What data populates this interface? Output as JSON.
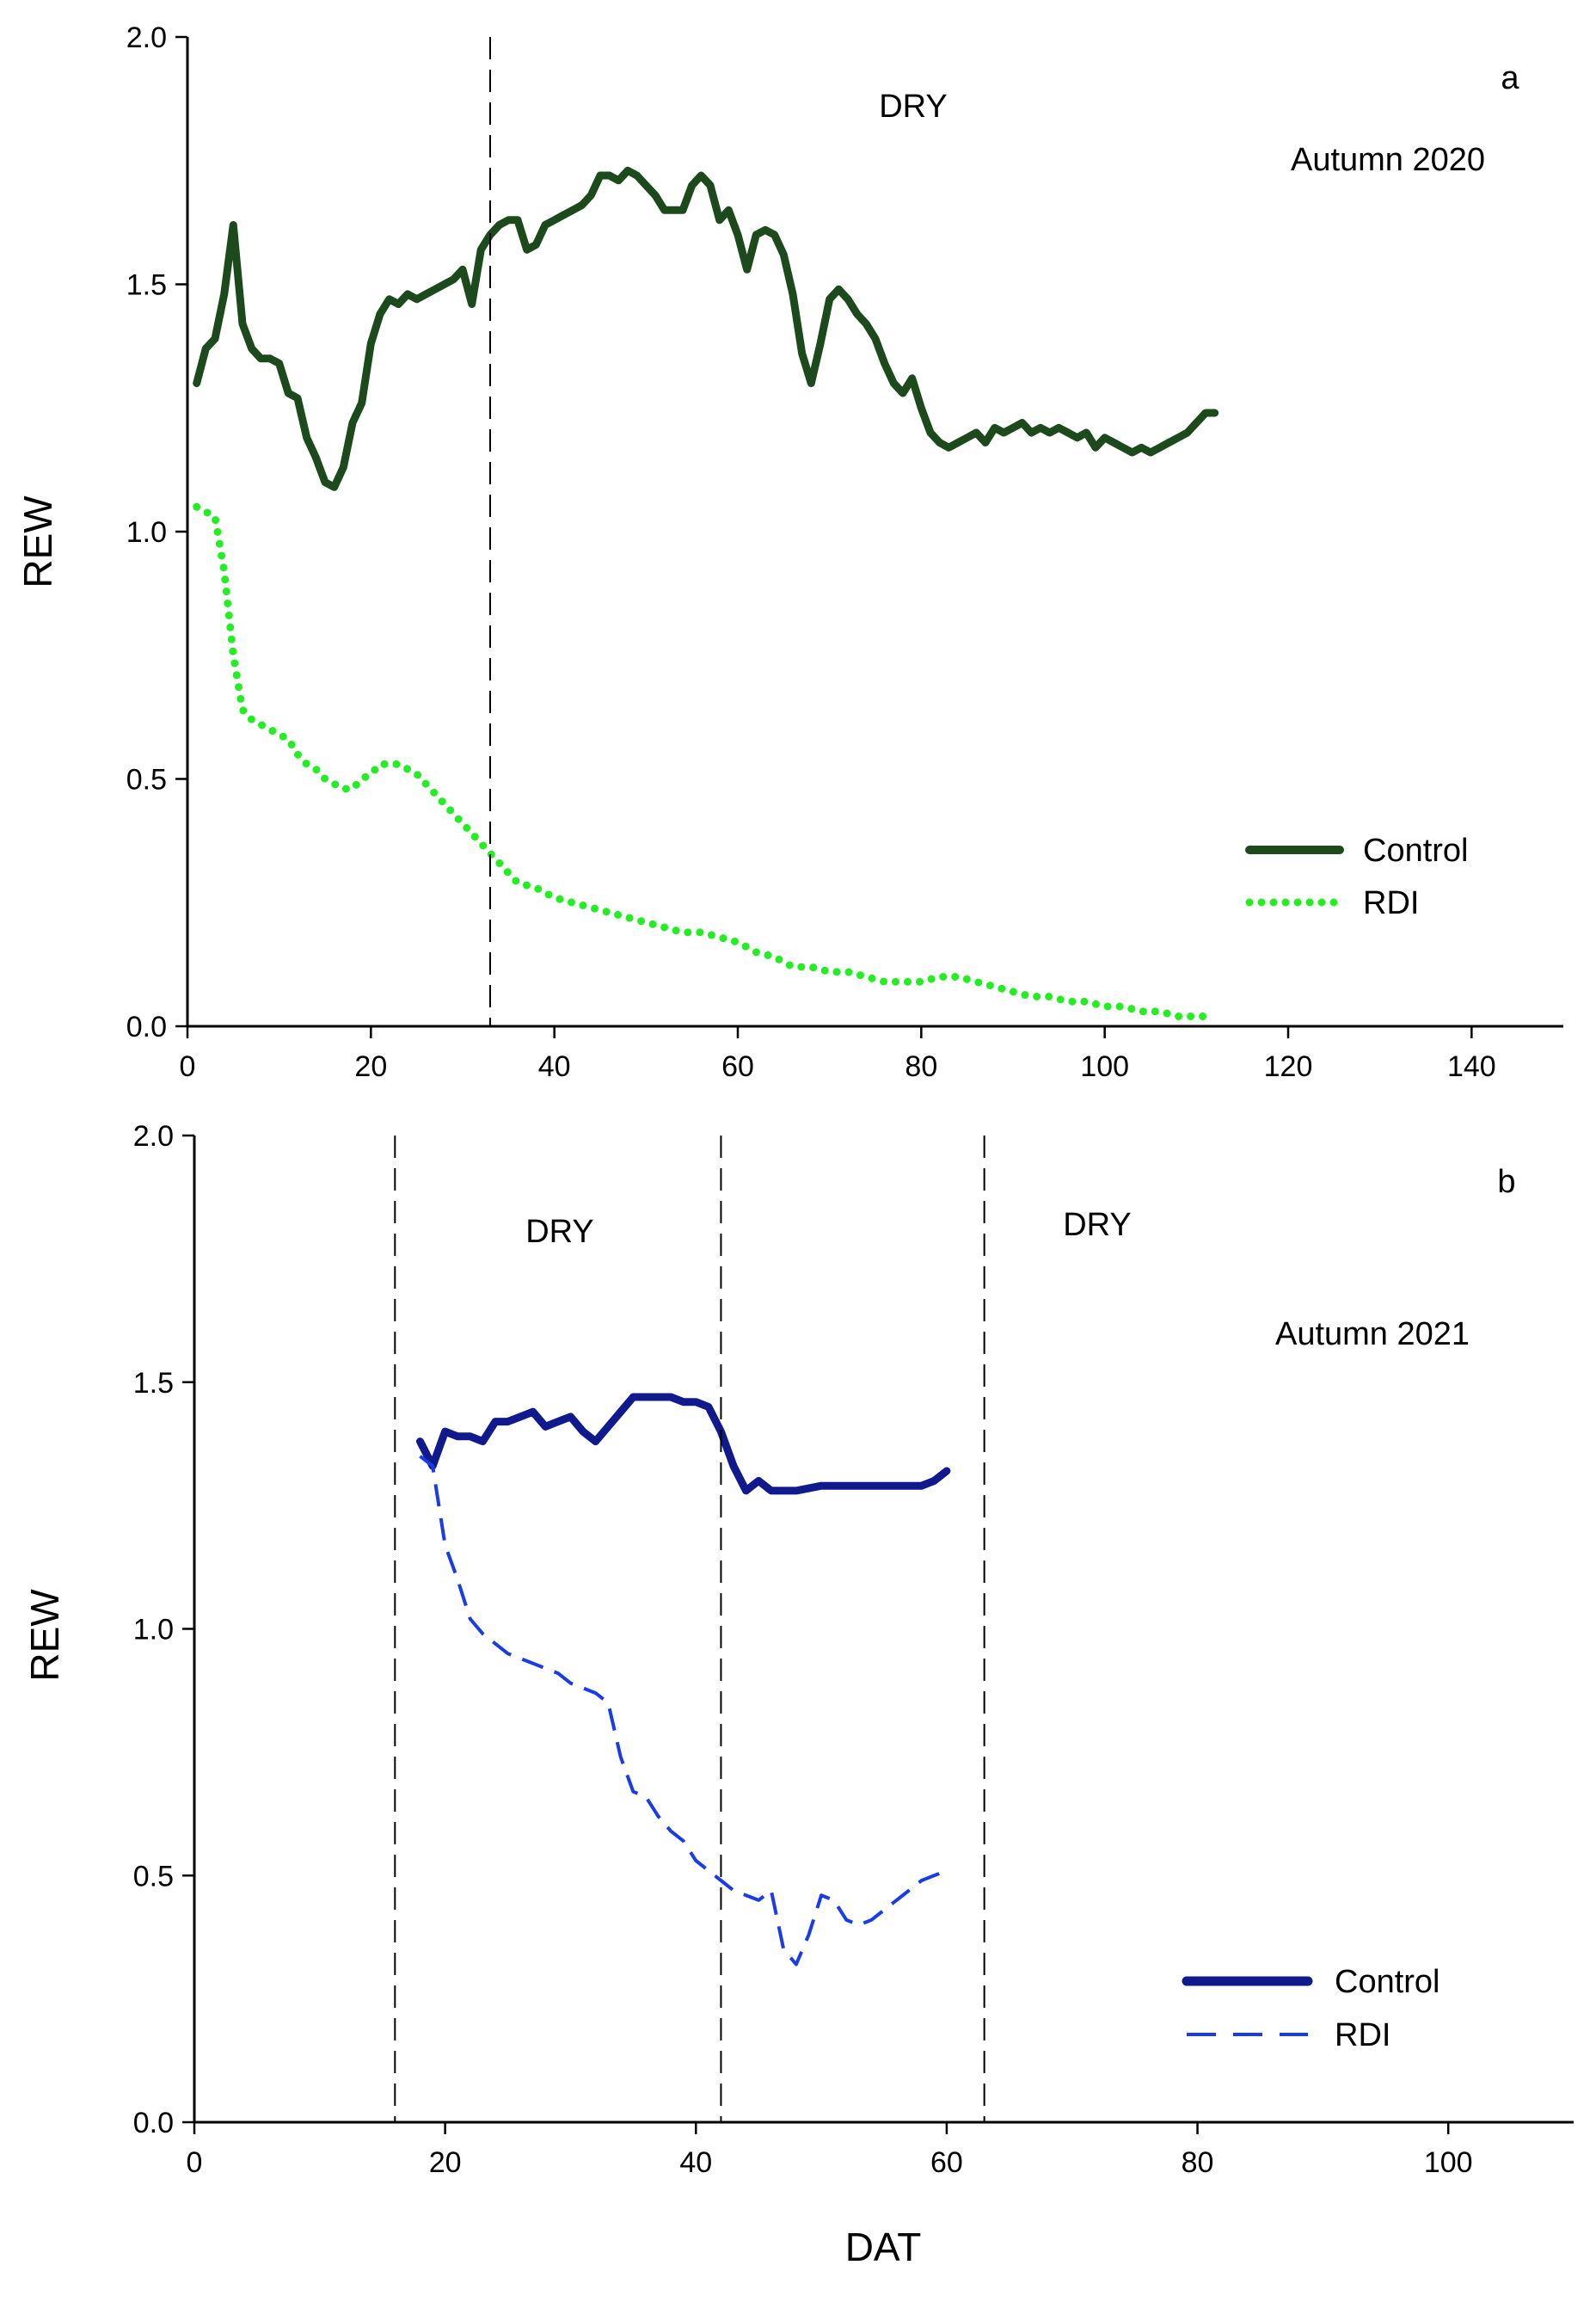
{
  "chart_data": [
    {
      "type": "line",
      "panel_label": "a",
      "season_label": "Autumn 2020",
      "period_labels": [
        "DRY"
      ],
      "dashed_vlines": [
        33
      ],
      "xlabel": "",
      "ylabel": "REW",
      "xlim": [
        0,
        150
      ],
      "ylim": [
        0,
        2.0
      ],
      "x_ticks": [
        0,
        20,
        40,
        60,
        80,
        100,
        120,
        140
      ],
      "y_ticks": [
        0.0,
        0.5,
        1.0,
        1.5,
        2.0
      ],
      "x_tick_labels": [
        "0",
        "20",
        "40",
        "60",
        "80",
        "100",
        "120",
        "140"
      ],
      "y_tick_labels": [
        "0.0",
        "0.5",
        "1.0",
        "1.5",
        "2.0"
      ],
      "legend": [
        "Control",
        "RDI"
      ],
      "series": [
        {
          "name": "Control",
          "color": "#1c4a1c",
          "style": "solid-thick",
          "points": [
            [
              1,
              1.3
            ],
            [
              2,
              1.37
            ],
            [
              3,
              1.39
            ],
            [
              4,
              1.48
            ],
            [
              5,
              1.62
            ],
            [
              6,
              1.42
            ],
            [
              7,
              1.37
            ],
            [
              8,
              1.35
            ],
            [
              9,
              1.35
            ],
            [
              10,
              1.34
            ],
            [
              11,
              1.28
            ],
            [
              12,
              1.27
            ],
            [
              13,
              1.19
            ],
            [
              14,
              1.15
            ],
            [
              15,
              1.1
            ],
            [
              16,
              1.09
            ],
            [
              17,
              1.13
            ],
            [
              18,
              1.22
            ],
            [
              19,
              1.26
            ],
            [
              20,
              1.38
            ],
            [
              21,
              1.44
            ],
            [
              22,
              1.47
            ],
            [
              23,
              1.46
            ],
            [
              24,
              1.48
            ],
            [
              25,
              1.47
            ],
            [
              26,
              1.48
            ],
            [
              27,
              1.49
            ],
            [
              28,
              1.5
            ],
            [
              29,
              1.51
            ],
            [
              30,
              1.53
            ],
            [
              31,
              1.46
            ],
            [
              32,
              1.57
            ],
            [
              33,
              1.6
            ],
            [
              34,
              1.62
            ],
            [
              35,
              1.63
            ],
            [
              36,
              1.63
            ],
            [
              37,
              1.57
            ],
            [
              38,
              1.58
            ],
            [
              39,
              1.62
            ],
            [
              40,
              1.63
            ],
            [
              41,
              1.64
            ],
            [
              42,
              1.65
            ],
            [
              43,
              1.66
            ],
            [
              44,
              1.68
            ],
            [
              45,
              1.72
            ],
            [
              46,
              1.72
            ],
            [
              47,
              1.71
            ],
            [
              48,
              1.73
            ],
            [
              49,
              1.72
            ],
            [
              50,
              1.7
            ],
            [
              51,
              1.68
            ],
            [
              52,
              1.65
            ],
            [
              53,
              1.65
            ],
            [
              54,
              1.65
            ],
            [
              55,
              1.7
            ],
            [
              56,
              1.72
            ],
            [
              57,
              1.7
            ],
            [
              58,
              1.63
            ],
            [
              59,
              1.65
            ],
            [
              60,
              1.6
            ],
            [
              61,
              1.53
            ],
            [
              62,
              1.6
            ],
            [
              63,
              1.61
            ],
            [
              64,
              1.6
            ],
            [
              65,
              1.56
            ],
            [
              66,
              1.48
            ],
            [
              67,
              1.36
            ],
            [
              68,
              1.3
            ],
            [
              69,
              1.38
            ],
            [
              70,
              1.47
            ],
            [
              71,
              1.49
            ],
            [
              72,
              1.47
            ],
            [
              73,
              1.44
            ],
            [
              74,
              1.42
            ],
            [
              75,
              1.39
            ],
            [
              76,
              1.34
            ],
            [
              77,
              1.3
            ],
            [
              78,
              1.28
            ],
            [
              79,
              1.31
            ],
            [
              80,
              1.25
            ],
            [
              81,
              1.2
            ],
            [
              82,
              1.18
            ],
            [
              83,
              1.17
            ],
            [
              84,
              1.18
            ],
            [
              85,
              1.19
            ],
            [
              86,
              1.2
            ],
            [
              87,
              1.18
            ],
            [
              88,
              1.21
            ],
            [
              89,
              1.2
            ],
            [
              90,
              1.21
            ],
            [
              91,
              1.22
            ],
            [
              92,
              1.2
            ],
            [
              93,
              1.21
            ],
            [
              94,
              1.2
            ],
            [
              95,
              1.21
            ],
            [
              96,
              1.2
            ],
            [
              97,
              1.19
            ],
            [
              98,
              1.2
            ],
            [
              99,
              1.17
            ],
            [
              100,
              1.19
            ],
            [
              101,
              1.18
            ],
            [
              102,
              1.17
            ],
            [
              103,
              1.16
            ],
            [
              104,
              1.17
            ],
            [
              105,
              1.16
            ],
            [
              106,
              1.17
            ],
            [
              107,
              1.18
            ],
            [
              108,
              1.19
            ],
            [
              109,
              1.2
            ],
            [
              110,
              1.22
            ],
            [
              111,
              1.24
            ],
            [
              112,
              1.24
            ]
          ]
        },
        {
          "name": "RDI",
          "color": "#22ee22",
          "style": "dotted",
          "points": [
            [
              1,
              1.05
            ],
            [
              2,
              1.04
            ],
            [
              3,
              1.03
            ],
            [
              4,
              0.92
            ],
            [
              5,
              0.75
            ],
            [
              6,
              0.64
            ],
            [
              7,
              0.62
            ],
            [
              8,
              0.61
            ],
            [
              9,
              0.6
            ],
            [
              10,
              0.59
            ],
            [
              11,
              0.58
            ],
            [
              12,
              0.55
            ],
            [
              13,
              0.53
            ],
            [
              14,
              0.52
            ],
            [
              15,
              0.5
            ],
            [
              16,
              0.49
            ],
            [
              17,
              0.48
            ],
            [
              18,
              0.48
            ],
            [
              19,
              0.5
            ],
            [
              20,
              0.51
            ],
            [
              21,
              0.53
            ],
            [
              22,
              0.53
            ],
            [
              23,
              0.53
            ],
            [
              24,
              0.52
            ],
            [
              25,
              0.51
            ],
            [
              26,
              0.49
            ],
            [
              27,
              0.47
            ],
            [
              28,
              0.45
            ],
            [
              29,
              0.43
            ],
            [
              30,
              0.41
            ],
            [
              31,
              0.39
            ],
            [
              32,
              0.37
            ],
            [
              33,
              0.35
            ],
            [
              34,
              0.33
            ],
            [
              35,
              0.31
            ],
            [
              36,
              0.29
            ],
            [
              38,
              0.28
            ],
            [
              40,
              0.26
            ],
            [
              42,
              0.25
            ],
            [
              44,
              0.24
            ],
            [
              46,
              0.23
            ],
            [
              48,
              0.22
            ],
            [
              50,
              0.21
            ],
            [
              52,
              0.2
            ],
            [
              54,
              0.19
            ],
            [
              56,
              0.19
            ],
            [
              58,
              0.18
            ],
            [
              60,
              0.17
            ],
            [
              62,
              0.15
            ],
            [
              64,
              0.14
            ],
            [
              66,
              0.12
            ],
            [
              68,
              0.12
            ],
            [
              70,
              0.11
            ],
            [
              72,
              0.11
            ],
            [
              74,
              0.1
            ],
            [
              76,
              0.09
            ],
            [
              78,
              0.09
            ],
            [
              80,
              0.09
            ],
            [
              82,
              0.1
            ],
            [
              84,
              0.1
            ],
            [
              86,
              0.09
            ],
            [
              88,
              0.08
            ],
            [
              90,
              0.07
            ],
            [
              92,
              0.06
            ],
            [
              94,
              0.06
            ],
            [
              96,
              0.05
            ],
            [
              98,
              0.05
            ],
            [
              100,
              0.04
            ],
            [
              102,
              0.04
            ],
            [
              104,
              0.03
            ],
            [
              106,
              0.03
            ],
            [
              108,
              0.02
            ],
            [
              110,
              0.02
            ],
            [
              111,
              0.02
            ]
          ]
        }
      ]
    },
    {
      "type": "line",
      "panel_label": "b",
      "season_label": "Autumn 2021",
      "period_labels": [
        "DRY",
        "DRY"
      ],
      "dashed_vlines": [
        16,
        42,
        63
      ],
      "xlabel": "DAT",
      "ylabel": "REW",
      "xlim": [
        0,
        110
      ],
      "ylim": [
        0,
        2.0
      ],
      "x_ticks": [
        0,
        20,
        40,
        60,
        80,
        100
      ],
      "y_ticks": [
        0.0,
        0.5,
        1.0,
        1.5,
        2.0
      ],
      "x_tick_labels": [
        "0",
        "20",
        "40",
        "60",
        "80",
        "100"
      ],
      "y_tick_labels": [
        "0.0",
        "0.5",
        "1.0",
        "1.5",
        "2.0"
      ],
      "legend": [
        "Control",
        "RDI"
      ],
      "series": [
        {
          "name": "Control",
          "color": "#101a8c",
          "style": "solid-thick",
          "points": [
            [
              18,
              1.38
            ],
            [
              19,
              1.33
            ],
            [
              20,
              1.4
            ],
            [
              21,
              1.39
            ],
            [
              22,
              1.39
            ],
            [
              23,
              1.38
            ],
            [
              24,
              1.42
            ],
            [
              25,
              1.42
            ],
            [
              26,
              1.43
            ],
            [
              27,
              1.44
            ],
            [
              28,
              1.41
            ],
            [
              29,
              1.42
            ],
            [
              30,
              1.43
            ],
            [
              31,
              1.4
            ],
            [
              32,
              1.38
            ],
            [
              33,
              1.41
            ],
            [
              34,
              1.44
            ],
            [
              35,
              1.47
            ],
            [
              36,
              1.47
            ],
            [
              37,
              1.47
            ],
            [
              38,
              1.47
            ],
            [
              39,
              1.46
            ],
            [
              40,
              1.46
            ],
            [
              41,
              1.45
            ],
            [
              42,
              1.4
            ],
            [
              43,
              1.33
            ],
            [
              44,
              1.28
            ],
            [
              45,
              1.3
            ],
            [
              46,
              1.28
            ],
            [
              47,
              1.28
            ],
            [
              48,
              1.28
            ],
            [
              50,
              1.29
            ],
            [
              52,
              1.29
            ],
            [
              54,
              1.29
            ],
            [
              56,
              1.29
            ],
            [
              58,
              1.29
            ],
            [
              59,
              1.3
            ],
            [
              60,
              1.32
            ]
          ]
        },
        {
          "name": "RDI",
          "color": "#1a3ce8",
          "style": "dashed",
          "points": [
            [
              18,
              1.35
            ],
            [
              19,
              1.33
            ],
            [
              20,
              1.17
            ],
            [
              21,
              1.1
            ],
            [
              22,
              1.02
            ],
            [
              23,
              0.99
            ],
            [
              24,
              0.97
            ],
            [
              25,
              0.95
            ],
            [
              26,
              0.94
            ],
            [
              27,
              0.93
            ],
            [
              28,
              0.92
            ],
            [
              29,
              0.91
            ],
            [
              30,
              0.89
            ],
            [
              31,
              0.88
            ],
            [
              32,
              0.87
            ],
            [
              33,
              0.85
            ],
            [
              34,
              0.74
            ],
            [
              35,
              0.67
            ],
            [
              36,
              0.66
            ],
            [
              37,
              0.62
            ],
            [
              38,
              0.59
            ],
            [
              39,
              0.57
            ],
            [
              40,
              0.53
            ],
            [
              41,
              0.51
            ],
            [
              42,
              0.49
            ],
            [
              43,
              0.47
            ],
            [
              44,
              0.46
            ],
            [
              45,
              0.45
            ],
            [
              46,
              0.47
            ],
            [
              47,
              0.35
            ],
            [
              48,
              0.32
            ],
            [
              49,
              0.38
            ],
            [
              50,
              0.46
            ],
            [
              51,
              0.45
            ],
            [
              52,
              0.41
            ],
            [
              53,
              0.4
            ],
            [
              54,
              0.41
            ],
            [
              55,
              0.43
            ],
            [
              56,
              0.45
            ],
            [
              57,
              0.47
            ],
            [
              58,
              0.49
            ],
            [
              59,
              0.5
            ],
            [
              60,
              0.51
            ]
          ]
        }
      ]
    }
  ]
}
